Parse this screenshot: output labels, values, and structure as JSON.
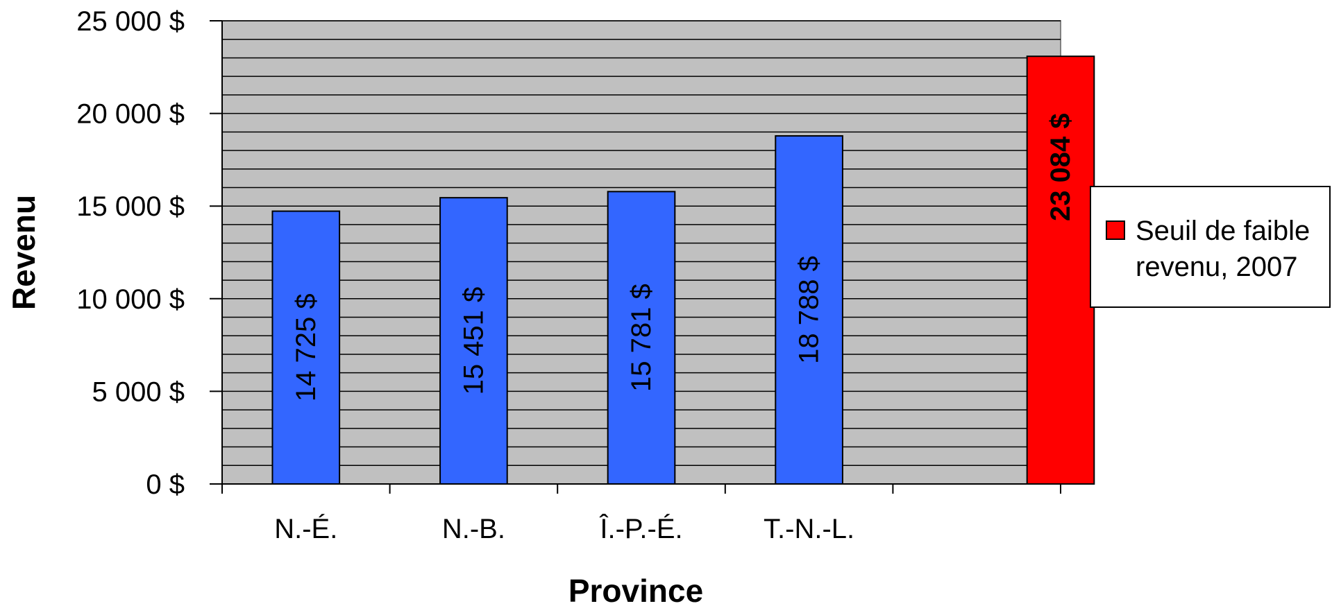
{
  "chart_data": {
    "type": "bar",
    "title": "",
    "xlabel": "Province",
    "ylabel": "Revenu",
    "ylim": [
      0,
      25000
    ],
    "y_ticks": [
      {
        "value": 0,
        "label": "0 $"
      },
      {
        "value": 5000,
        "label": "5 000 $"
      },
      {
        "value": 10000,
        "label": "10 000 $"
      },
      {
        "value": 15000,
        "label": "15 000 $"
      },
      {
        "value": 20000,
        "label": "20 000 $"
      },
      {
        "value": 25000,
        "label": "25 000 $"
      }
    ],
    "minor_gridline_step": 1000,
    "grid": true,
    "plot_background": "#c0c0c0",
    "categories": [
      "N.-É.",
      "N.-B.",
      "Î.-P.-É.",
      "T.-N.-L.",
      ""
    ],
    "bars": [
      {
        "category": "N.-É.",
        "value": 14725,
        "label": "14 725 $",
        "color": "#3366ff",
        "bold": false
      },
      {
        "category": "N.-B.",
        "value": 15451,
        "label": "15 451 $",
        "color": "#3366ff",
        "bold": false
      },
      {
        "category": "Î.-P.-É.",
        "value": 15781,
        "label": "15 781 $",
        "color": "#3366ff",
        "bold": false
      },
      {
        "category": "T.-N.-L.",
        "value": 18788,
        "label": "18 788 $",
        "color": "#3366ff",
        "bold": false
      },
      {
        "category": "",
        "value": 23084,
        "label": "23 084 $",
        "color": "#ff0000",
        "bold": true
      }
    ],
    "legend": {
      "position": "right",
      "entries": [
        {
          "lines": [
            "Seuil de faible",
            "revenu, 2007"
          ],
          "color": "#ff0000"
        }
      ]
    }
  }
}
